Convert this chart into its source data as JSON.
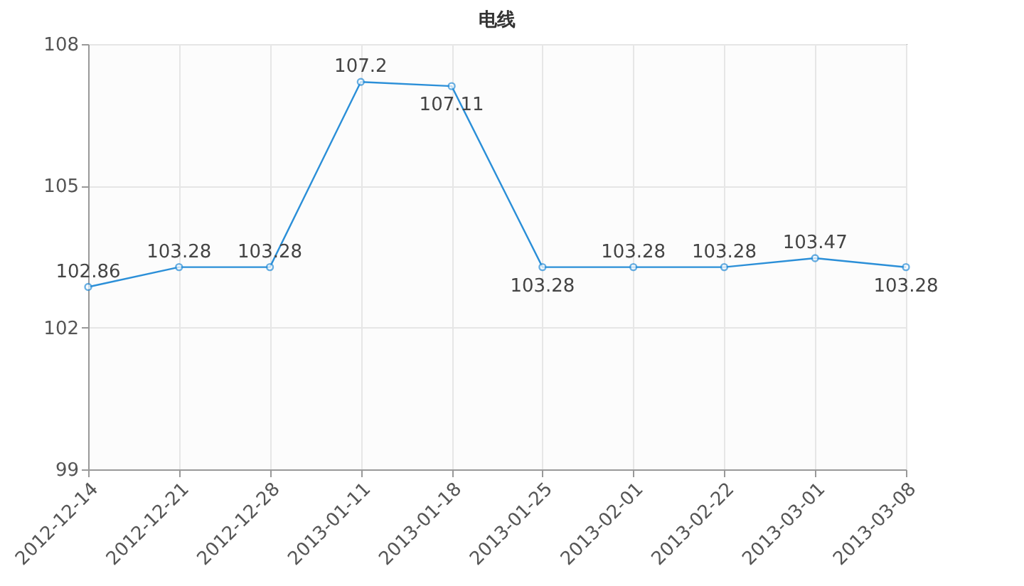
{
  "chart_data": {
    "type": "line",
    "title": "电线",
    "categories": [
      "2012-12-14",
      "2012-12-21",
      "2012-12-28",
      "2013-01-11",
      "2013-01-18",
      "2013-01-25",
      "2013-02-01",
      "2013-02-22",
      "2013-03-01",
      "2013-03-08"
    ],
    "series": [
      {
        "color": "#2b8fd8",
        "values": [
          102.86,
          103.28,
          103.28,
          107.2,
          107.11,
          103.28,
          103.28,
          103.28,
          103.47,
          103.28
        ]
      }
    ],
    "ylim": [
      99,
      108
    ],
    "yticks": [
      99,
      102,
      105,
      108
    ],
    "grid": true,
    "marker": "circle",
    "data_labels": true
  }
}
